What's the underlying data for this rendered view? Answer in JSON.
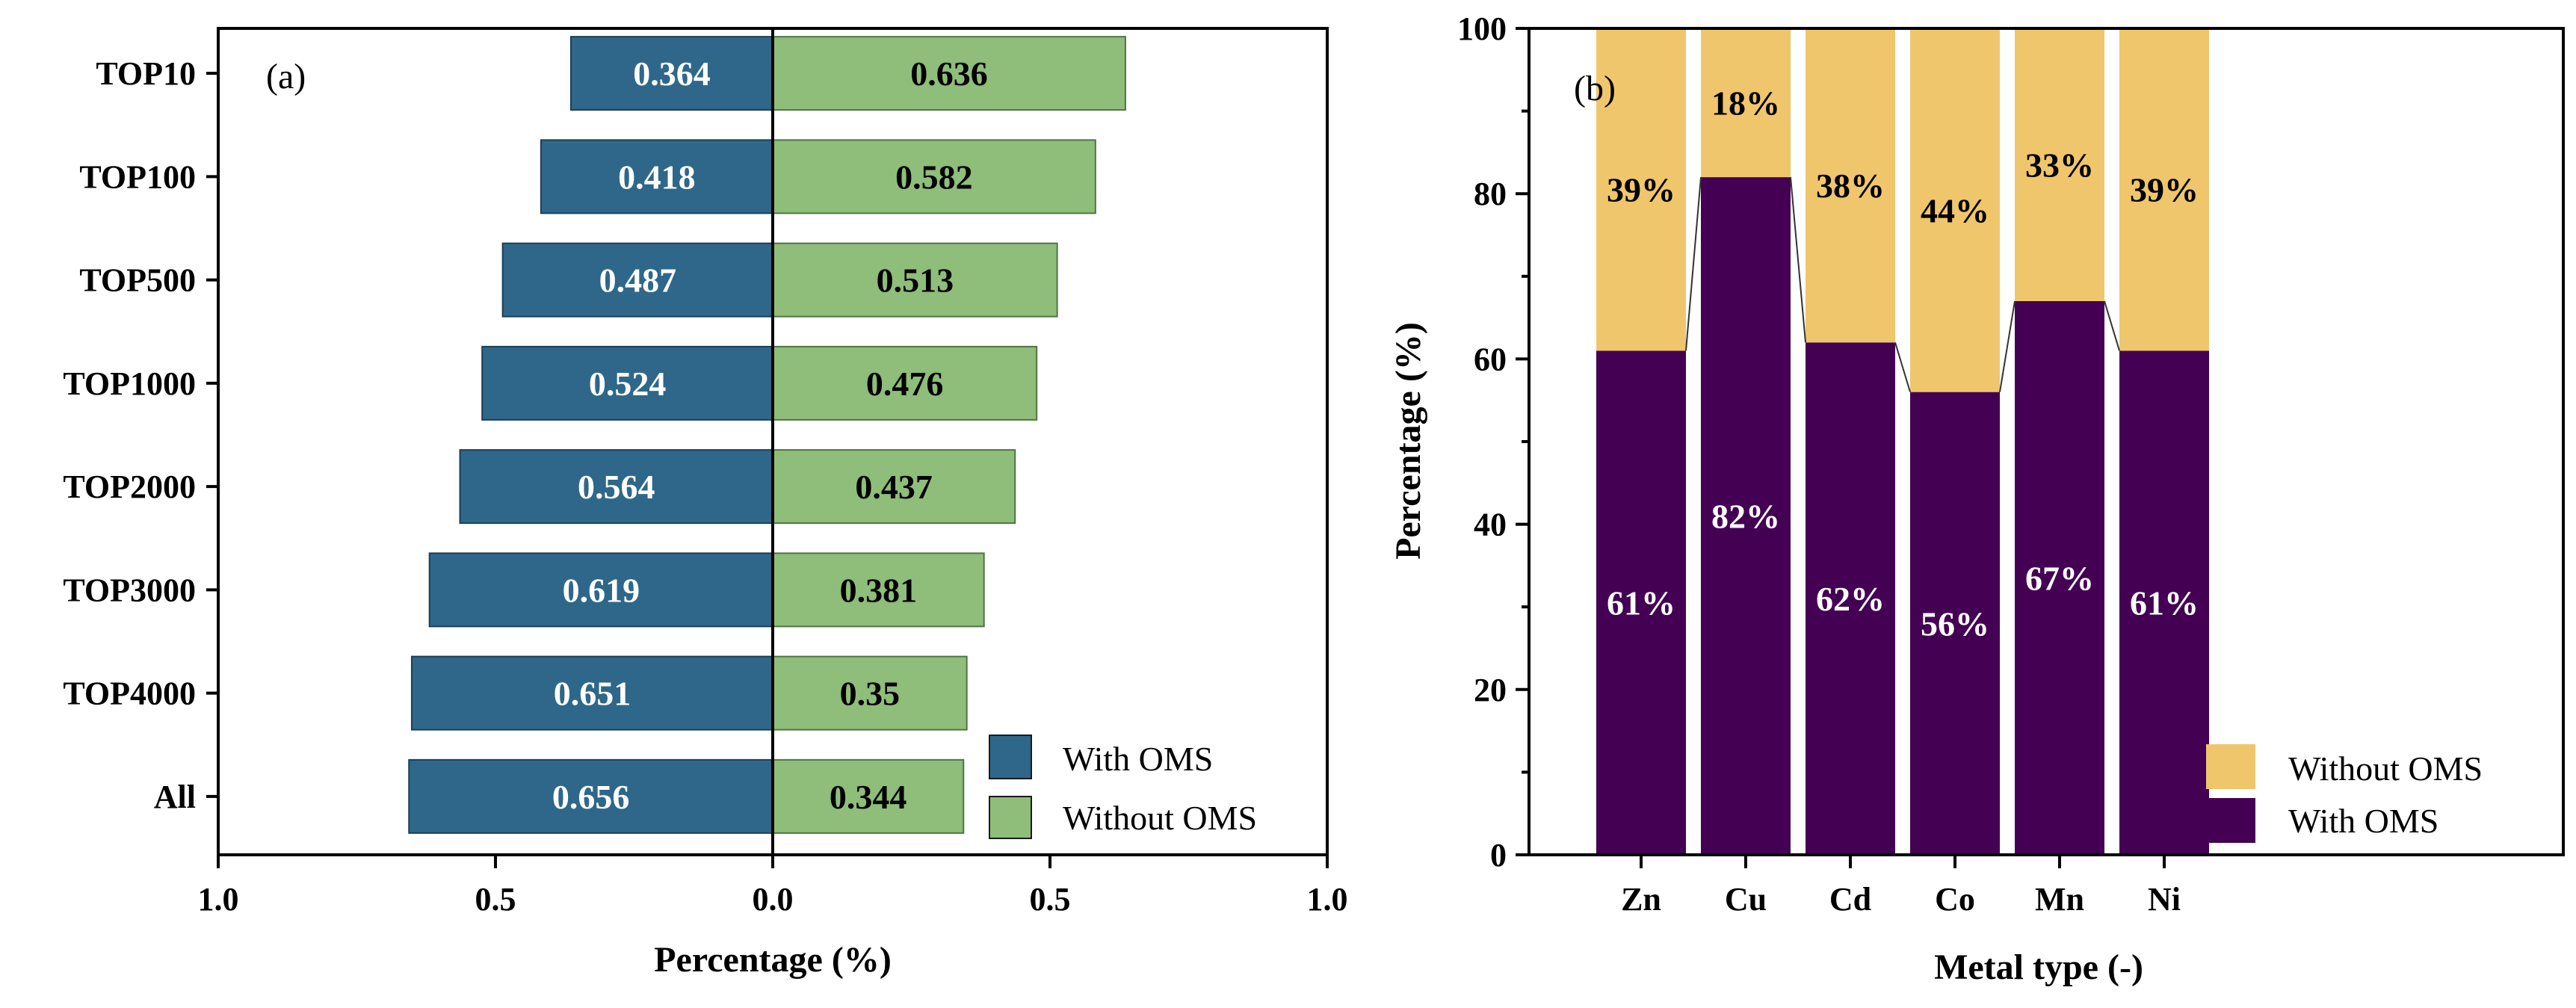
{
  "chart_data": [
    {
      "type": "bar",
      "orientation": "horizontal-diverging",
      "panel_label": "(a)",
      "title": "",
      "categories": [
        "TOP10",
        "TOP100",
        "TOP500",
        "TOP1000",
        "TOP2000",
        "TOP3000",
        "TOP4000",
        "All"
      ],
      "series": [
        {
          "name": "With OMS",
          "values": [
            0.364,
            0.418,
            0.487,
            0.524,
            0.564,
            0.619,
            0.651,
            0.656
          ],
          "labels": [
            "0.364",
            "0.418",
            "0.487",
            "0.524",
            "0.564",
            "0.619",
            "0.651",
            "0.656"
          ],
          "direction": "left",
          "color": "#2e6789",
          "label_color": "#ffffff"
        },
        {
          "name": "Without OMS",
          "values": [
            0.636,
            0.582,
            0.513,
            0.476,
            0.437,
            0.381,
            0.35,
            0.344
          ],
          "labels": [
            "0.636",
            "0.582",
            "0.513",
            "0.476",
            "0.437",
            "0.381",
            "0.35",
            "0.344"
          ],
          "direction": "right",
          "color": "#8fbd7a",
          "label_color": "#000000"
        }
      ],
      "xlabel": "Percentage (%)",
      "ylabel": "",
      "xlim": [
        -1.0,
        1.0
      ],
      "xticks": [
        -1.0,
        -0.5,
        0.0,
        0.5,
        1.0
      ],
      "xtick_labels": [
        "1.0",
        "0.5",
        "0.0",
        "0.5",
        "1.0"
      ],
      "legend": {
        "position": "bottom-right",
        "entries": [
          "With OMS",
          "Without OMS"
        ]
      }
    },
    {
      "type": "bar",
      "stacked": true,
      "panel_label": "(b)",
      "title": "",
      "categories": [
        "Zn",
        "Cu",
        "Cd",
        "Co",
        "Mn",
        "Ni"
      ],
      "series": [
        {
          "name": "With OMS",
          "values": [
            61,
            82,
            62,
            56,
            67,
            61
          ],
          "labels": [
            "61%",
            "82%",
            "62%",
            "56%",
            "67%",
            "61%"
          ],
          "color": "#440154",
          "label_color": "#ffffff"
        },
        {
          "name": "Without OMS",
          "values": [
            39,
            18,
            38,
            44,
            33,
            39
          ],
          "labels": [
            "39%",
            "18%",
            "38%",
            "44%",
            "33%",
            "39%"
          ],
          "color": "#f0c66c",
          "label_color": "#000000"
        }
      ],
      "xlabel": "Metal type (-)",
      "ylabel": "Percentage (%)",
      "ylim": [
        0,
        100
      ],
      "yticks": [
        0,
        20,
        40,
        60,
        80,
        100
      ],
      "ytick_labels": [
        "0",
        "20",
        "40",
        "60",
        "80",
        "100"
      ],
      "connector_lines": true,
      "legend": {
        "position": "bottom-right",
        "entries": [
          "Without OMS",
          "With OMS"
        ]
      }
    }
  ]
}
